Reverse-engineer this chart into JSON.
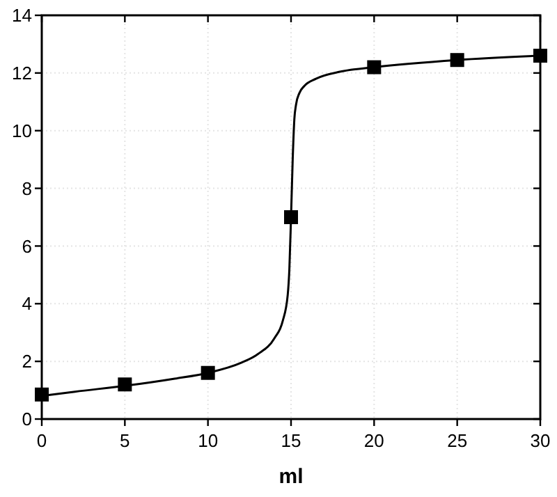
{
  "chart_data": {
    "type": "scatter",
    "xlabel": "ml",
    "xlim": [
      0,
      30
    ],
    "xticks": [
      0,
      5,
      10,
      15,
      20,
      25,
      30
    ],
    "ylim": [
      0,
      14
    ],
    "yticks": [
      0,
      2,
      4,
      6,
      8,
      10,
      12,
      14
    ],
    "grid": true,
    "series": [
      {
        "type": "line",
        "color": "#000000",
        "marker": "none",
        "line_style": "solid",
        "x": [
          0,
          2,
          5,
          8,
          10,
          12,
          13,
          14,
          14.5,
          14.8,
          14.9,
          15,
          15.1,
          15.2,
          15.3,
          15.5,
          15.8,
          16.5,
          18,
          20,
          25,
          30
        ],
        "values": [
          0.8,
          0.95,
          1.15,
          1.4,
          1.6,
          1.95,
          2.25,
          2.8,
          3.4,
          4.3,
          5.2,
          7,
          9,
          10.4,
          10.9,
          11.3,
          11.55,
          11.8,
          12.05,
          12.2,
          12.45,
          12.6
        ]
      },
      {
        "color": "#000000",
        "marker": "square",
        "x": [
          0,
          5,
          10,
          15,
          20,
          25,
          30
        ],
        "values": [
          0.85,
          1.2,
          1.6,
          7.0,
          12.2,
          12.45,
          12.6
        ]
      }
    ]
  }
}
